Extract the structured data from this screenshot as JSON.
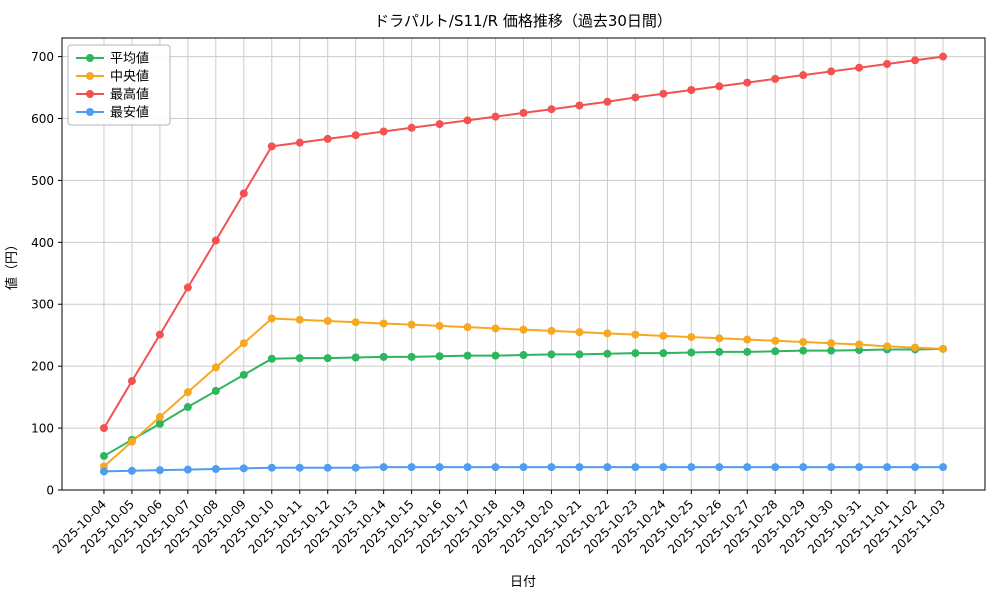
{
  "chart_data": {
    "type": "line",
    "title": "ドラパルト/S11/R 価格推移（過去30日間）",
    "xlabel": "日付",
    "ylabel": "値（円）",
    "ylim": [
      0,
      730
    ],
    "yticks": [
      0,
      100,
      200,
      300,
      400,
      500,
      600,
      700
    ],
    "grid": true,
    "legend_position": "upper-left",
    "x": [
      "2025-10-04",
      "2025-10-05",
      "2025-10-06",
      "2025-10-07",
      "2025-10-08",
      "2025-10-09",
      "2025-10-10",
      "2025-10-11",
      "2025-10-12",
      "2025-10-13",
      "2025-10-14",
      "2025-10-15",
      "2025-10-16",
      "2025-10-17",
      "2025-10-18",
      "2025-10-19",
      "2025-10-20",
      "2025-10-21",
      "2025-10-22",
      "2025-10-23",
      "2025-10-24",
      "2025-10-25",
      "2025-10-26",
      "2025-10-27",
      "2025-10-28",
      "2025-10-29",
      "2025-10-30",
      "2025-10-31",
      "2025-11-01",
      "2025-11-02",
      "2025-11-03"
    ],
    "series": [
      {
        "name": "平均値",
        "color": "#2fb45f",
        "values": [
          55,
          81,
          107,
          134,
          160,
          186,
          212,
          213,
          213,
          214,
          215,
          215,
          216,
          217,
          217,
          218,
          219,
          219,
          220,
          221,
          221,
          222,
          223,
          223,
          224,
          225,
          225,
          226,
          227,
          227,
          228
        ]
      },
      {
        "name": "中央値",
        "color": "#f7a823",
        "values": [
          38,
          78,
          118,
          158,
          198,
          237,
          277,
          275,
          273,
          271,
          269,
          267,
          265,
          263,
          261,
          259,
          257,
          255,
          253,
          251,
          249,
          247,
          245,
          243,
          241,
          239,
          237,
          235,
          232,
          230,
          228
        ]
      },
      {
        "name": "最高値",
        "color": "#f25252",
        "values": [
          100,
          176,
          251,
          327,
          403,
          479,
          555,
          561,
          567,
          573,
          579,
          585,
          591,
          597,
          603,
          609,
          615,
          621,
          627,
          634,
          640,
          646,
          652,
          658,
          664,
          670,
          676,
          682,
          688,
          694,
          700
        ]
      },
      {
        "name": "最安値",
        "color": "#4f9cf0",
        "values": [
          30,
          31,
          32,
          33,
          34,
          35,
          36,
          36,
          36,
          36,
          37,
          37,
          37,
          37,
          37,
          37,
          37,
          37,
          37,
          37,
          37,
          37,
          37,
          37,
          37,
          37,
          37,
          37,
          37,
          37,
          37
        ]
      }
    ]
  }
}
